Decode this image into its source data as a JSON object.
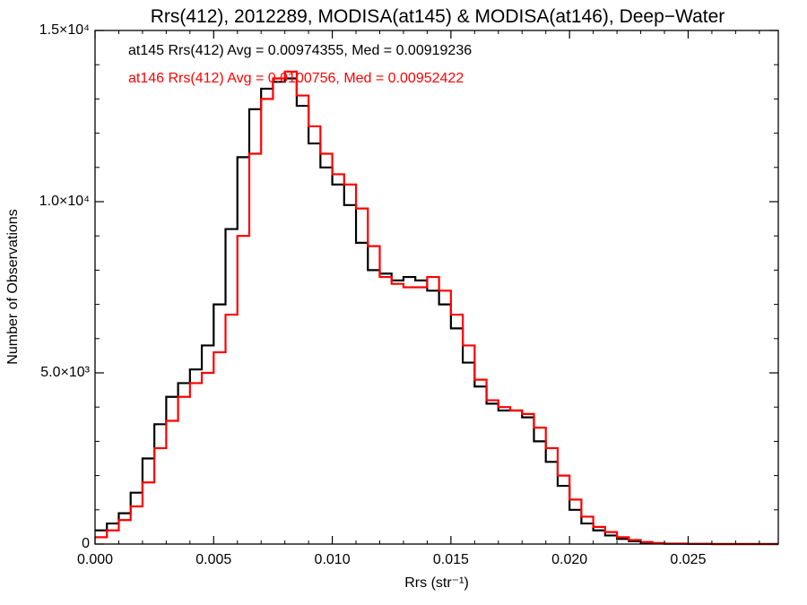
{
  "chart_data": {
    "type": "line",
    "title": "Rrs(412), 2012289, MODISA(at145) & MODISA(at146), Deep−Water",
    "xlabel": "Rrs (str⁻¹)",
    "ylabel": "Number of Observations",
    "xlim": [
      0,
      0.0288
    ],
    "ylim": [
      0,
      15000
    ],
    "x_ticks": [
      {
        "value": 0.0,
        "label": "0.000"
      },
      {
        "value": 0.005,
        "label": "0.005"
      },
      {
        "value": 0.01,
        "label": "0.010"
      },
      {
        "value": 0.015,
        "label": "0.015"
      },
      {
        "value": 0.02,
        "label": "0.020"
      },
      {
        "value": 0.025,
        "label": "0.025"
      }
    ],
    "y_ticks": [
      {
        "value": 0,
        "label": "0"
      },
      {
        "value": 5000,
        "label": "5.0×10³"
      },
      {
        "value": 10000,
        "label": "1.0×10⁴"
      },
      {
        "value": 15000,
        "label": "1.5×10⁴"
      }
    ],
    "grid": false,
    "legend_position": "top-left",
    "series": [
      {
        "name": "at145",
        "label": "at145 Rrs(412) Avg = 0.00974355, Med = 0.00919236",
        "color": "#000000",
        "x": [
          0.0,
          0.0005,
          0.001,
          0.0015,
          0.002,
          0.0025,
          0.003,
          0.0035,
          0.004,
          0.0045,
          0.005,
          0.0055,
          0.006,
          0.0065,
          0.007,
          0.0075,
          0.008,
          0.0085,
          0.009,
          0.0095,
          0.01,
          0.0105,
          0.011,
          0.0115,
          0.012,
          0.0125,
          0.013,
          0.0135,
          0.014,
          0.0145,
          0.015,
          0.0155,
          0.016,
          0.0165,
          0.017,
          0.0175,
          0.018,
          0.0185,
          0.019,
          0.0195,
          0.02,
          0.0205,
          0.021,
          0.0215,
          0.022,
          0.0225,
          0.023,
          0.0235,
          0.024,
          0.025,
          0.026,
          0.027,
          0.0288
        ],
        "values": [
          400,
          600,
          900,
          1500,
          2500,
          3500,
          4300,
          4700,
          5100,
          5800,
          7000,
          9200,
          11300,
          12700,
          13300,
          13500,
          13600,
          12800,
          11700,
          11000,
          10500,
          9900,
          8800,
          8000,
          7900,
          7700,
          7800,
          7700,
          7400,
          7000,
          6300,
          5300,
          4600,
          4100,
          3900,
          3900,
          3700,
          3000,
          2400,
          1700,
          1000,
          600,
          400,
          250,
          150,
          80,
          40,
          20,
          10,
          5,
          0,
          0,
          0
        ]
      },
      {
        "name": "at146",
        "label": "at146 Rrs(412) Avg = 0.0100756, Med = 0.00952422",
        "color": "#ff0000",
        "x": [
          0.0,
          0.0005,
          0.001,
          0.0015,
          0.002,
          0.0025,
          0.003,
          0.0035,
          0.004,
          0.0045,
          0.005,
          0.0055,
          0.006,
          0.0065,
          0.007,
          0.0075,
          0.008,
          0.0085,
          0.009,
          0.0095,
          0.01,
          0.0105,
          0.011,
          0.0115,
          0.012,
          0.0125,
          0.013,
          0.0135,
          0.014,
          0.0145,
          0.015,
          0.0155,
          0.016,
          0.0165,
          0.017,
          0.0175,
          0.018,
          0.0185,
          0.019,
          0.0195,
          0.02,
          0.0205,
          0.021,
          0.0215,
          0.022,
          0.0225,
          0.023,
          0.0235,
          0.024,
          0.025,
          0.026,
          0.027,
          0.0288
        ],
        "values": [
          200,
          400,
          700,
          1100,
          1800,
          2800,
          3600,
          4300,
          4700,
          5000,
          5600,
          6700,
          9000,
          11400,
          13000,
          13600,
          13800,
          13100,
          12200,
          11400,
          10800,
          10500,
          9800,
          8700,
          7800,
          7600,
          7500,
          7500,
          7800,
          7400,
          6700,
          5800,
          4800,
          4200,
          4000,
          3900,
          3800,
          3400,
          2800,
          2000,
          1300,
          800,
          500,
          350,
          200,
          120,
          60,
          30,
          15,
          5,
          0,
          0,
          0
        ]
      }
    ]
  }
}
